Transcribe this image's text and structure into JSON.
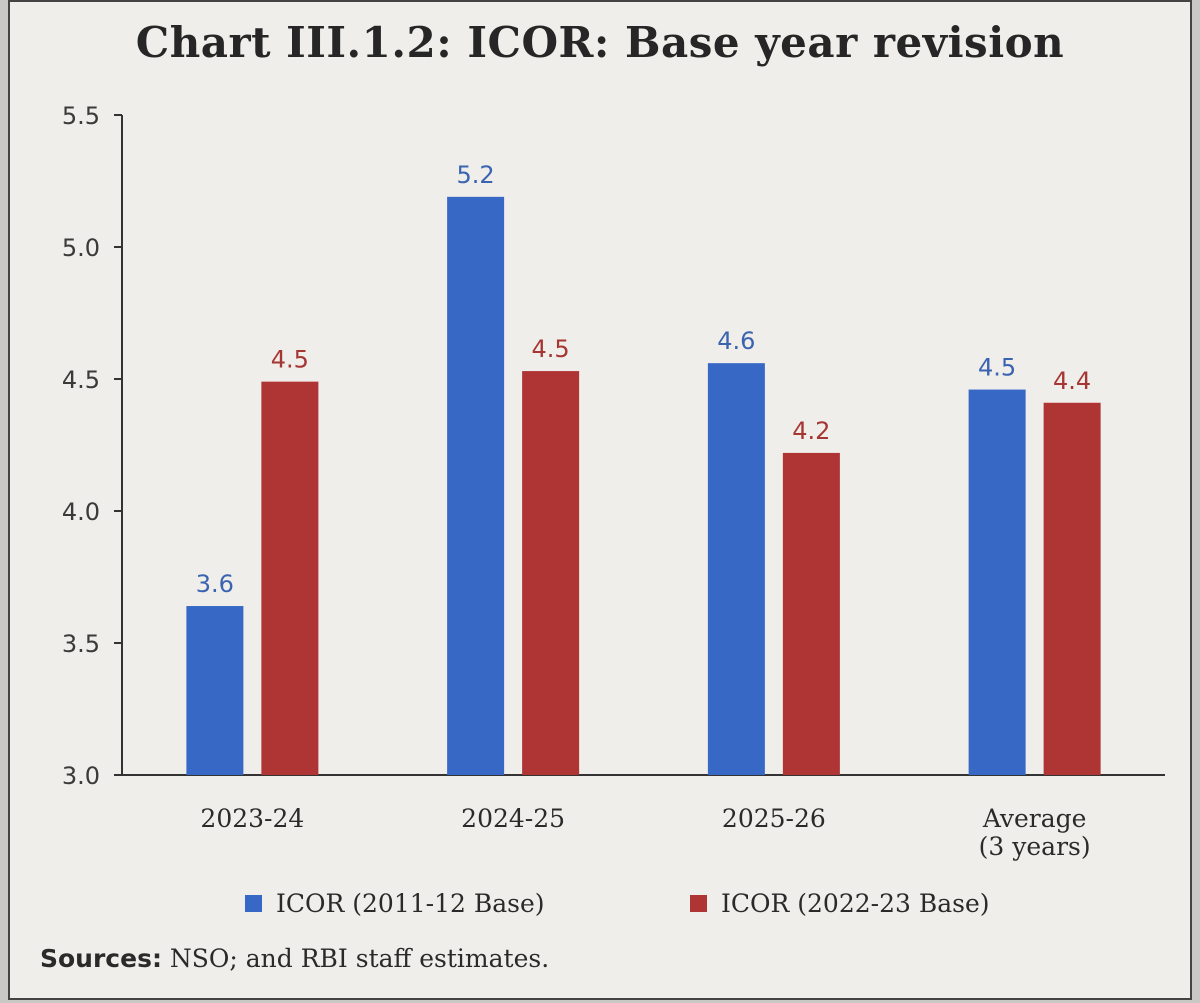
{
  "title": "Chart III.1.2: ICOR: Base year revision",
  "colors": {
    "series_1": "#3868c6",
    "series_2": "#ae3533",
    "series_1_label": "#3a64b0",
    "series_2_label": "#a63633",
    "axis": "#333333"
  },
  "chart_data": {
    "type": "bar",
    "title": "Chart III.1.2: ICOR: Base year revision",
    "categories": [
      "2023-24",
      "2024-25",
      "2025-26",
      "Average (3 years)"
    ],
    "category_lines": [
      [
        "2023-24"
      ],
      [
        "2024-25"
      ],
      [
        "2025-26"
      ],
      [
        "Average",
        "(3 years)"
      ]
    ],
    "series": [
      {
        "name": "ICOR (2011-12 Base)",
        "values": [
          3.64,
          5.19,
          4.56,
          4.46
        ],
        "labels": [
          "3.6",
          "5.2",
          "4.6",
          "4.5"
        ]
      },
      {
        "name": "ICOR (2022-23 Base)",
        "values": [
          4.49,
          4.53,
          4.22,
          4.41
        ],
        "labels": [
          "4.5",
          "4.5",
          "4.2",
          "4.4"
        ]
      }
    ],
    "ylim": [
      3.0,
      5.5
    ],
    "yticks": [
      3.0,
      3.5,
      4.0,
      4.5,
      5.0,
      5.5
    ],
    "ytick_labels": [
      "3.0",
      "3.5",
      "4.0",
      "4.5",
      "5.0",
      "5.5"
    ],
    "xlabel": "",
    "ylabel": "",
    "grid": false,
    "legend_position": "bottom"
  },
  "source": {
    "label": "Sources:",
    "text": " NSO; and RBI staff estimates."
  }
}
